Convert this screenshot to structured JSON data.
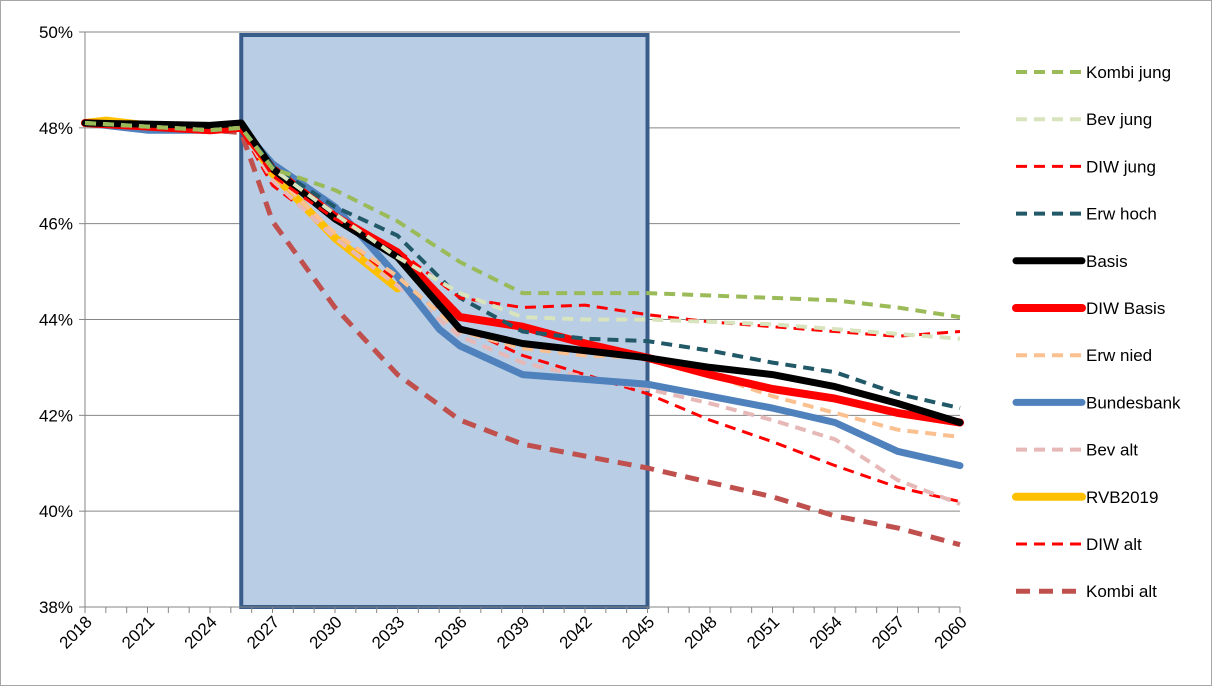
{
  "chart_data": {
    "type": "line",
    "title": "",
    "xlabel": "",
    "ylabel": "",
    "ylim": [
      0.38,
      0.5
    ],
    "xlim": [
      2018,
      2060
    ],
    "grid": "horizontal",
    "legend_position": "right",
    "y_ticks": [
      "38%",
      "40%",
      "42%",
      "44%",
      "46%",
      "48%",
      "50%"
    ],
    "x_ticks": [
      "2018",
      "2021",
      "2024",
      "2027",
      "2030",
      "2033",
      "2036",
      "2039",
      "2042",
      "2045",
      "2048",
      "2051",
      "2054",
      "2057",
      "2060"
    ],
    "highlight_range": [
      2025.5,
      2045
    ],
    "series": [
      {
        "name": "Kombi jung",
        "color": "#9bbb59",
        "dash": true,
        "width": 4,
        "x": [
          2018,
          2024,
          2025.5,
          2027,
          2030,
          2033,
          2036,
          2039,
          2042,
          2045,
          2048,
          2051,
          2054,
          2057,
          2060
        ],
        "y": [
          0.481,
          0.4795,
          0.48,
          0.4715,
          0.467,
          0.4605,
          0.452,
          0.4455,
          0.4455,
          0.4455,
          0.445,
          0.4445,
          0.444,
          0.4425,
          0.4405
        ]
      },
      {
        "name": "Bev jung",
        "color": "#d7e4bd",
        "dash": true,
        "width": 4,
        "x": [
          2018,
          2024,
          2025.5,
          2027,
          2030,
          2033,
          2036,
          2039,
          2042,
          2045,
          2048,
          2051,
          2054,
          2057,
          2060
        ],
        "y": [
          0.481,
          0.4795,
          0.48,
          0.4715,
          0.462,
          0.453,
          0.4455,
          0.4405,
          0.44,
          0.44,
          0.4395,
          0.439,
          0.438,
          0.437,
          0.436
        ]
      },
      {
        "name": "DIW jung",
        "color": "#ff0000",
        "dash": true,
        "width": 3,
        "x": [
          2018,
          2024,
          2025.5,
          2027,
          2030,
          2033,
          2036,
          2039,
          2042,
          2045,
          2048,
          2051,
          2054,
          2057,
          2060
        ],
        "y": [
          0.481,
          0.4795,
          0.48,
          0.47,
          0.461,
          0.4545,
          0.4445,
          0.4425,
          0.443,
          0.441,
          0.4395,
          0.4385,
          0.4375,
          0.4365,
          0.4375
        ]
      },
      {
        "name": "Erw hoch",
        "color": "#215968",
        "dash": true,
        "width": 4,
        "x": [
          2018,
          2024,
          2025.5,
          2027,
          2030,
          2033,
          2036,
          2039,
          2042,
          2045,
          2048,
          2051,
          2054,
          2057,
          2060
        ],
        "y": [
          0.481,
          0.4795,
          0.48,
          0.472,
          0.4635,
          0.4575,
          0.4445,
          0.4375,
          0.436,
          0.4355,
          0.4335,
          0.431,
          0.429,
          0.4245,
          0.4215
        ]
      },
      {
        "name": "Basis",
        "color": "#000000",
        "dash": false,
        "width": 7,
        "x": [
          2018,
          2024,
          2025.5,
          2027,
          2030,
          2033,
          2036,
          2039,
          2042,
          2045,
          2048,
          2051,
          2054,
          2057,
          2060
        ],
        "y": [
          0.481,
          0.4805,
          0.481,
          0.4715,
          0.461,
          0.453,
          0.438,
          0.435,
          0.4335,
          0.432,
          0.43,
          0.4285,
          0.426,
          0.4225,
          0.4185
        ]
      },
      {
        "name": "DIW Basis",
        "color": "#ff0000",
        "dash": false,
        "width": 8,
        "x": [
          2018,
          2024,
          2025.5,
          2027,
          2030,
          2033,
          2036,
          2039,
          2042,
          2045,
          2048,
          2051,
          2054,
          2057,
          2060
        ],
        "y": [
          0.481,
          0.4795,
          0.48,
          0.4715,
          0.4615,
          0.454,
          0.4405,
          0.4385,
          0.435,
          0.432,
          0.4285,
          0.4255,
          0.4235,
          0.4205,
          0.4185
        ]
      },
      {
        "name": "Erw nied",
        "color": "#fac090",
        "dash": true,
        "width": 4,
        "x": [
          2018,
          2024,
          2025.5,
          2027,
          2030,
          2033,
          2036,
          2039,
          2042,
          2045,
          2048,
          2051,
          2054,
          2057,
          2060
        ],
        "y": [
          0.481,
          0.4795,
          0.48,
          0.4705,
          0.458,
          0.449,
          0.4375,
          0.434,
          0.4325,
          0.432,
          0.4285,
          0.424,
          0.4205,
          0.417,
          0.4155
        ]
      },
      {
        "name": "Bundesbank",
        "color": "#4f81bd",
        "dash": false,
        "width": 7,
        "x": [
          2018,
          2021,
          2024,
          2025.5,
          2027,
          2030,
          2033,
          2035,
          2036,
          2039,
          2042,
          2045,
          2048,
          2051,
          2054,
          2057,
          2060
        ],
        "y": [
          0.481,
          0.4795,
          0.4795,
          0.48,
          0.4725,
          0.4635,
          0.449,
          0.438,
          0.4345,
          0.4285,
          0.4275,
          0.4265,
          0.424,
          0.4215,
          0.4185,
          0.4125,
          0.4095
        ]
      },
      {
        "name": "Bev alt",
        "color": "#e6b9b8",
        "dash": true,
        "width": 4,
        "x": [
          2018,
          2024,
          2025.5,
          2027,
          2030,
          2033,
          2036,
          2039,
          2042,
          2045,
          2048,
          2051,
          2054,
          2057,
          2060
        ],
        "y": [
          0.481,
          0.4795,
          0.48,
          0.469,
          0.457,
          0.447,
          0.4365,
          0.431,
          0.428,
          0.4255,
          0.4225,
          0.419,
          0.415,
          0.4065,
          0.4015
        ]
      },
      {
        "name": "RVB2019",
        "color": "#ffc000",
        "dash": false,
        "width": 8,
        "x": [
          2018,
          2019,
          2021,
          2024,
          2025.5,
          2027,
          2030,
          2033
        ],
        "y": [
          0.481,
          0.4815,
          0.4805,
          0.48,
          0.4805,
          0.4705,
          0.457,
          0.4465
        ]
      },
      {
        "name": "DIW alt",
        "color": "#ff0000",
        "dash": true,
        "width": 3,
        "x": [
          2018,
          2024,
          2025.5,
          2027,
          2030,
          2033,
          2036,
          2039,
          2042,
          2045,
          2048,
          2051,
          2054,
          2057,
          2060
        ],
        "y": [
          0.481,
          0.4795,
          0.4795,
          0.468,
          0.458,
          0.448,
          0.4385,
          0.4325,
          0.4285,
          0.4245,
          0.419,
          0.4145,
          0.4095,
          0.405,
          0.402
        ]
      },
      {
        "name": "Kombi alt",
        "color": "#c0504d",
        "dash": true,
        "width": 5,
        "x": [
          2018,
          2024,
          2025.5,
          2027,
          2030,
          2033,
          2036,
          2039,
          2042,
          2045,
          2048,
          2051,
          2054,
          2057,
          2060
        ],
        "y": [
          0.481,
          0.4795,
          0.479,
          0.4605,
          0.4425,
          0.4285,
          0.419,
          0.414,
          0.4115,
          0.409,
          0.406,
          0.403,
          0.399,
          0.3965,
          0.393
        ]
      }
    ]
  }
}
